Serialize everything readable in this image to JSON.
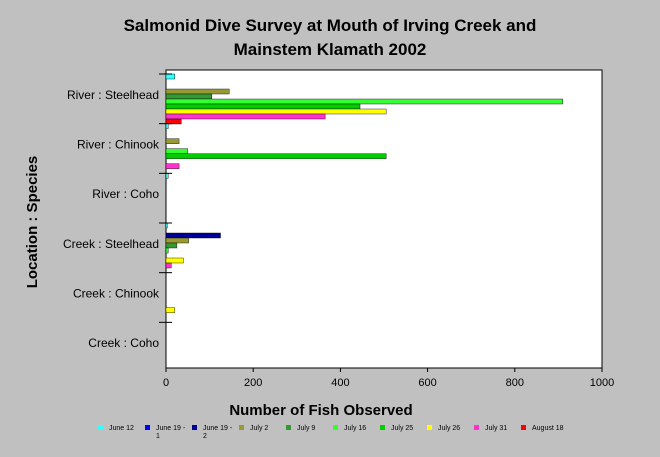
{
  "chart_data": {
    "type": "bar",
    "orientation": "horizontal",
    "title_line1": "Salmonid Dive Survey at Mouth of Irving Creek and",
    "title_line2": "Mainstem Klamath 2002",
    "xlabel": "Number of Fish Observed",
    "ylabel": "Location : Species",
    "xlim": [
      0,
      1000
    ],
    "xticks": [
      "0",
      "200",
      "400",
      "600",
      "800",
      "1000"
    ],
    "grid": false,
    "legend_position": "bottom",
    "categories": [
      "River : Steelhead",
      "River : Chinook",
      "River : Coho",
      "Creek : Steelhead",
      "Creek : Chinook",
      "Creek : Coho"
    ],
    "series": [
      {
        "name": "June 12",
        "name_lines": [
          "June 12"
        ],
        "color": "#33ffff",
        "values": [
          20,
          5,
          5,
          3,
          0,
          0
        ]
      },
      {
        "name": "June 19 - 1",
        "name_lines": [
          "June 19 -",
          "1"
        ],
        "color": "#0000ff",
        "values": [
          0,
          0,
          0,
          0,
          0,
          0
        ]
      },
      {
        "name": "June 19 - 2",
        "name_lines": [
          "June 19 -",
          "2"
        ],
        "color": "#000099",
        "values": [
          0,
          0,
          0,
          125,
          0,
          0
        ]
      },
      {
        "name": "July 2",
        "name_lines": [
          "July 2"
        ],
        "color": "#999933",
        "values": [
          145,
          30,
          0,
          52,
          0,
          0
        ]
      },
      {
        "name": "July 9",
        "name_lines": [
          "July 9"
        ],
        "color": "#339933",
        "values": [
          105,
          0,
          0,
          25,
          0,
          0
        ]
      },
      {
        "name": "July 16",
        "name_lines": [
          "July 16"
        ],
        "color": "#33ff33",
        "values": [
          910,
          50,
          0,
          5,
          0,
          0
        ]
      },
      {
        "name": "July 25",
        "name_lines": [
          "July 25"
        ],
        "color": "#00cc00",
        "values": [
          445,
          505,
          0,
          0,
          0,
          0
        ]
      },
      {
        "name": "July 26",
        "name_lines": [
          "July 26"
        ],
        "color": "#ffff00",
        "values": [
          505,
          0,
          0,
          40,
          20,
          0
        ]
      },
      {
        "name": "July 31",
        "name_lines": [
          "July 31"
        ],
        "color": "#ff33cc",
        "values": [
          365,
          30,
          0,
          12,
          0,
          0
        ]
      },
      {
        "name": "August 18",
        "name_lines": [
          "August 18"
        ],
        "color": "#ff0000",
        "values": [
          35,
          0,
          0,
          0,
          0,
          0
        ]
      }
    ]
  }
}
